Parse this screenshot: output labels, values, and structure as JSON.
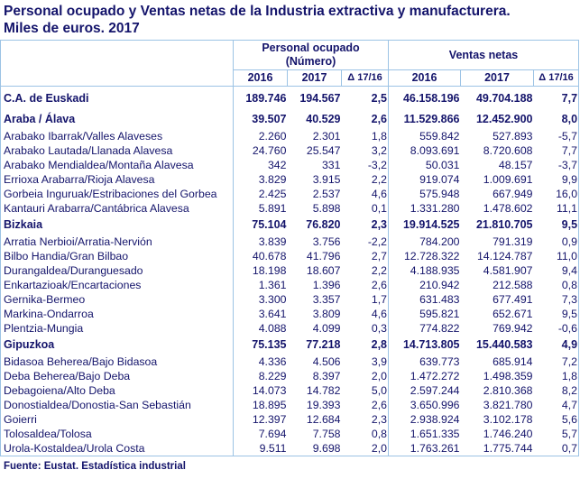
{
  "title_line1": "Personal ocupado y Ventas netas de la  Industria extractiva y manufacturera.",
  "title_line2": "Miles de euros. 2017",
  "headers": {
    "personal": "Personal ocupado",
    "personal_unit": "(Número)",
    "ventas": "Ventas netas",
    "y2016": "2016",
    "y2017": "2017",
    "delta": "Δ 17/16"
  },
  "rows": [
    {
      "type": "total",
      "label": "C.A. de Euskadi",
      "p2016": "189.746",
      "p2017": "194.567",
      "pd": "2,5",
      "v2016": "46.158.196",
      "v2017": "49.704.188",
      "vd": "7,7"
    },
    {
      "type": "group",
      "label": "Araba / Álava",
      "p2016": "39.507",
      "p2017": "40.529",
      "pd": "2,6",
      "v2016": "11.529.866",
      "v2017": "12.452.900",
      "vd": "8,0"
    },
    {
      "type": "item",
      "label": "Arabako Ibarrak/Valles Alaveses",
      "p2016": "2.260",
      "p2017": "2.301",
      "pd": "1,8",
      "v2016": "559.842",
      "v2017": "527.893",
      "vd": "-5,7"
    },
    {
      "type": "item",
      "label": "Arabako Lautada/Llanada Alavesa",
      "p2016": "24.760",
      "p2017": "25.547",
      "pd": "3,2",
      "v2016": "8.093.691",
      "v2017": "8.720.608",
      "vd": "7,7"
    },
    {
      "type": "item",
      "label": "Arabako Mendialdea/Montaña Alavesa",
      "p2016": "342",
      "p2017": "331",
      "pd": "-3,2",
      "v2016": "50.031",
      "v2017": "48.157",
      "vd": "-3,7"
    },
    {
      "type": "item",
      "label": "Errioxa Arabarra/Rioja Alavesa",
      "p2016": "3.829",
      "p2017": "3.915",
      "pd": "2,2",
      "v2016": "919.074",
      "v2017": "1.009.691",
      "vd": "9,9"
    },
    {
      "type": "item",
      "label": "Gorbeia Inguruak/Estribaciones del Gorbea",
      "p2016": "2.425",
      "p2017": "2.537",
      "pd": "4,6",
      "v2016": "575.948",
      "v2017": "667.949",
      "vd": "16,0"
    },
    {
      "type": "item",
      "label": "Kantauri Arabarra/Cantábrica Alavesa",
      "p2016": "5.891",
      "p2017": "5.898",
      "pd": "0,1",
      "v2016": "1.331.280",
      "v2017": "1.478.602",
      "vd": "11,1"
    },
    {
      "type": "group",
      "label": "Bizkaia",
      "p2016": "75.104",
      "p2017": "76.820",
      "pd": "2,3",
      "v2016": "19.914.525",
      "v2017": "21.810.705",
      "vd": "9,5"
    },
    {
      "type": "item",
      "label": "Arratia Nerbioi/Arratia-Nervión",
      "p2016": "3.839",
      "p2017": "3.756",
      "pd": "-2,2",
      "v2016": "784.200",
      "v2017": "791.319",
      "vd": "0,9"
    },
    {
      "type": "item",
      "label": "Bilbo Handia/Gran Bilbao",
      "p2016": "40.678",
      "p2017": "41.796",
      "pd": "2,7",
      "v2016": "12.728.322",
      "v2017": "14.124.787",
      "vd": "11,0"
    },
    {
      "type": "item",
      "label": "Durangaldea/Duranguesado",
      "p2016": "18.198",
      "p2017": "18.607",
      "pd": "2,2",
      "v2016": "4.188.935",
      "v2017": "4.581.907",
      "vd": "9,4"
    },
    {
      "type": "item",
      "label": "Enkartazioak/Encartaciones",
      "p2016": "1.361",
      "p2017": "1.396",
      "pd": "2,6",
      "v2016": "210.942",
      "v2017": "212.588",
      "vd": "0,8"
    },
    {
      "type": "item",
      "label": "Gernika-Bermeo",
      "p2016": "3.300",
      "p2017": "3.357",
      "pd": "1,7",
      "v2016": "631.483",
      "v2017": "677.491",
      "vd": "7,3"
    },
    {
      "type": "item",
      "label": "Markina-Ondarroa",
      "p2016": "3.641",
      "p2017": "3.809",
      "pd": "4,6",
      "v2016": "595.821",
      "v2017": "652.671",
      "vd": "9,5"
    },
    {
      "type": "item",
      "label": "Plentzia-Mungia",
      "p2016": "4.088",
      "p2017": "4.099",
      "pd": "0,3",
      "v2016": "774.822",
      "v2017": "769.942",
      "vd": "-0,6"
    },
    {
      "type": "group",
      "label": "Gipuzkoa",
      "p2016": "75.135",
      "p2017": "77.218",
      "pd": "2,8",
      "v2016": "14.713.805",
      "v2017": "15.440.583",
      "vd": "4,9"
    },
    {
      "type": "item",
      "label": "Bidasoa Beherea/Bajo Bidasoa",
      "p2016": "4.336",
      "p2017": "4.506",
      "pd": "3,9",
      "v2016": "639.773",
      "v2017": "685.914",
      "vd": "7,2"
    },
    {
      "type": "item",
      "label": "Deba Beherea/Bajo Deba",
      "p2016": "8.229",
      "p2017": "8.397",
      "pd": "2,0",
      "v2016": "1.472.272",
      "v2017": "1.498.359",
      "vd": "1,8"
    },
    {
      "type": "item",
      "label": "Debagoiena/Alto Deba",
      "p2016": "14.073",
      "p2017": "14.782",
      "pd": "5,0",
      "v2016": "2.597.244",
      "v2017": "2.810.368",
      "vd": "8,2"
    },
    {
      "type": "item",
      "label": "Donostialdea/Donostia-San Sebastián",
      "p2016": "18.895",
      "p2017": "19.393",
      "pd": "2,6",
      "v2016": "3.650.996",
      "v2017": "3.821.780",
      "vd": "4,7"
    },
    {
      "type": "item",
      "label": "Goierri",
      "p2016": "12.397",
      "p2017": "12.684",
      "pd": "2,3",
      "v2016": "2.938.924",
      "v2017": "3.102.178",
      "vd": "5,6"
    },
    {
      "type": "item",
      "label": "Tolosaldea/Tolosa",
      "p2016": "7.694",
      "p2017": "7.758",
      "pd": "0,8",
      "v2016": "1.651.335",
      "v2017": "1.746.240",
      "vd": "5,7"
    },
    {
      "type": "item",
      "label": "Urola-Kostaldea/Urola Costa",
      "p2016": "9.511",
      "p2017": "9.698",
      "pd": "2,0",
      "v2016": "1.763.261",
      "v2017": "1.775.744",
      "vd": "0,7"
    }
  ],
  "footer": "Fuente: Eustat. Estadística industrial",
  "colors": {
    "text": "#14146b",
    "border": "#9cc3e5"
  }
}
